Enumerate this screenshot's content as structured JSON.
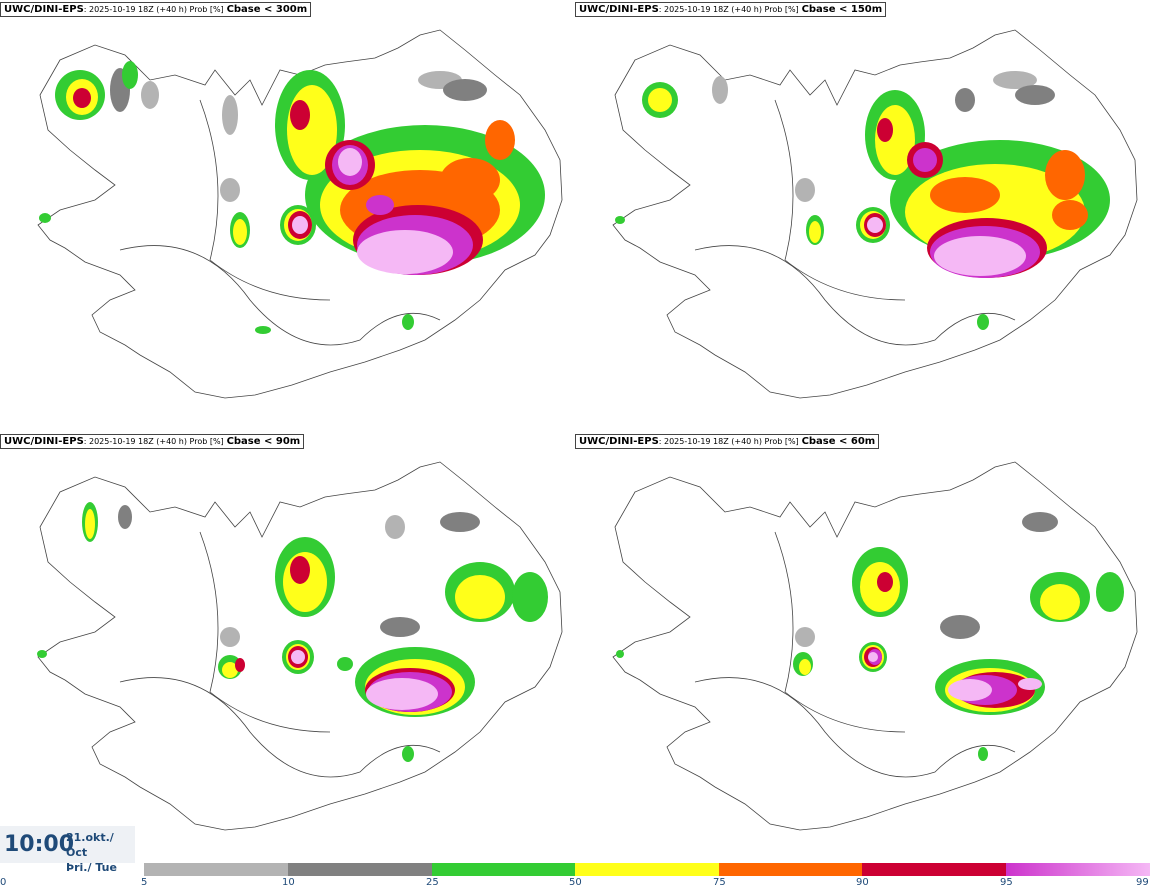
{
  "panels": [
    {
      "model": "UWC/DINI-EPS",
      "run": ": 2025-10-19 18Z (+40 h) Prob [%]",
      "param": "Cbase < 300m"
    },
    {
      "model": "UWC/DINI-EPS",
      "run": ": 2025-10-19 18Z (+40 h) Prob [%]",
      "param": "Cbase < 150m"
    },
    {
      "model": "UWC/DINI-EPS",
      "run": ": 2025-10-19 18Z (+40 h) Prob [%]",
      "param": "Cbase < 90m"
    },
    {
      "model": "UWC/DINI-EPS",
      "run": ": 2025-10-19 18Z (+40 h) Prob [%]",
      "param": "Cbase < 60m"
    }
  ],
  "valid_time": {
    "time": "10:00",
    "date": "21.okt./ Oct",
    "day": "Þri./ Tue"
  },
  "legend": {
    "ticks": [
      "0",
      "5",
      "10",
      "25",
      "50",
      "75",
      "90",
      "95",
      "99"
    ],
    "colors": [
      "#b3b3b3",
      "#808080",
      "#33cc33",
      "#ffff1a",
      "#ff6600",
      "#cc0033",
      "#cc33cc",
      "#f5b8f5"
    ]
  }
}
